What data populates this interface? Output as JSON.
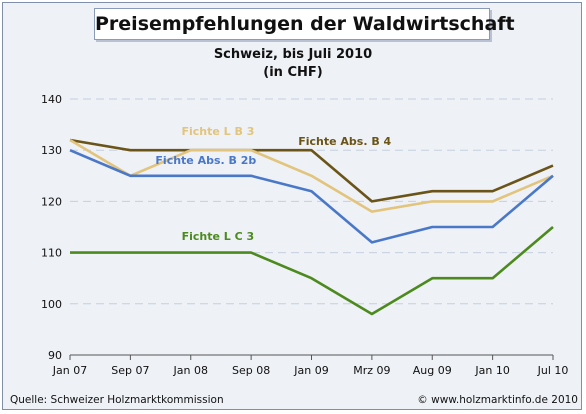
{
  "chart_data": {
    "type": "line",
    "title": "Preisempfehlungen der Waldwirtschaft",
    "subtitle": "Schweiz, bis Juli 2010",
    "unit": "(in CHF)",
    "categories": [
      "Jan 07",
      "Sep 07",
      "Jan 08",
      "Sep 08",
      "Jan 09",
      "Mrz 09",
      "Aug 09",
      "Jan 10",
      "Jul 10"
    ],
    "yticks": [
      "140",
      "130",
      "120",
      "110",
      "100",
      "90"
    ],
    "ylim": [
      90,
      140
    ],
    "grid": true,
    "series": [
      {
        "name": "Fichte Abs. B 4",
        "color": "#6b5418",
        "values": [
          132,
          130,
          130,
          130,
          130,
          120,
          122,
          122,
          127
        ]
      },
      {
        "name": "Fichte L B 3",
        "color": "#e2c47c",
        "values": [
          132,
          125,
          130,
          130,
          125,
          118,
          120,
          120,
          125
        ]
      },
      {
        "name": "Fichte Abs. B 2b",
        "color": "#4a78c8",
        "values": [
          130,
          125,
          125,
          125,
          122,
          112,
          115,
          115,
          125
        ]
      },
      {
        "name": "Fichte L C 3",
        "color": "#4c8a1e",
        "values": [
          110,
          110,
          110,
          110,
          105,
          98,
          105,
          105,
          115
        ]
      }
    ]
  },
  "footer": {
    "source": "Quelle:  Schweizer Holzmarktkommission",
    "copyright": "© www.holzmarktinfo.de 2010"
  }
}
